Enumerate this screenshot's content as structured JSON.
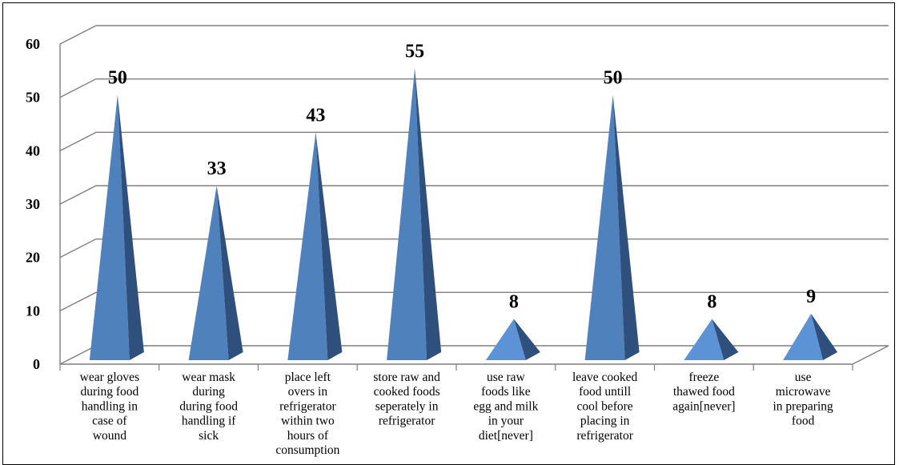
{
  "chart_data": {
    "type": "bar",
    "style": "3d-pyramid",
    "categories": [
      [
        "wear gloves",
        "during food",
        "handling in",
        "case of",
        "wound"
      ],
      [
        "wear mask",
        "during",
        "during food",
        "handling if",
        "sick"
      ],
      [
        "place left",
        "overs in",
        "refrigerator",
        "within two",
        "hours of",
        "consumption"
      ],
      [
        "store raw and",
        "cooked foods",
        "seperately in",
        "refrigerator"
      ],
      [
        "use raw",
        "foods like",
        "egg and milk",
        "in your",
        "diet[never]"
      ],
      [
        "leave cooked",
        "food untill",
        "cool before",
        "placing in",
        "refrigerator"
      ],
      [
        "freeze",
        "thawed food",
        "again[never]"
      ],
      [
        "use",
        "microwave",
        "in preparing",
        "food"
      ]
    ],
    "values": [
      50,
      33,
      43,
      55,
      8,
      50,
      8,
      9
    ],
    "data_labels": [
      "50",
      "33",
      "43",
      "55",
      "8",
      "50",
      "8",
      "9"
    ],
    "ylim": [
      0,
      60
    ],
    "yticks": [
      "0",
      "10",
      "20",
      "30",
      "40",
      "50",
      "60"
    ],
    "grid": true,
    "legend": "none",
    "colors": {
      "face_front": "#4f81bd",
      "face_front_light": "#5b93d6",
      "face_side": "#2f4f7c",
      "gridline": "#7f7f7f"
    }
  }
}
